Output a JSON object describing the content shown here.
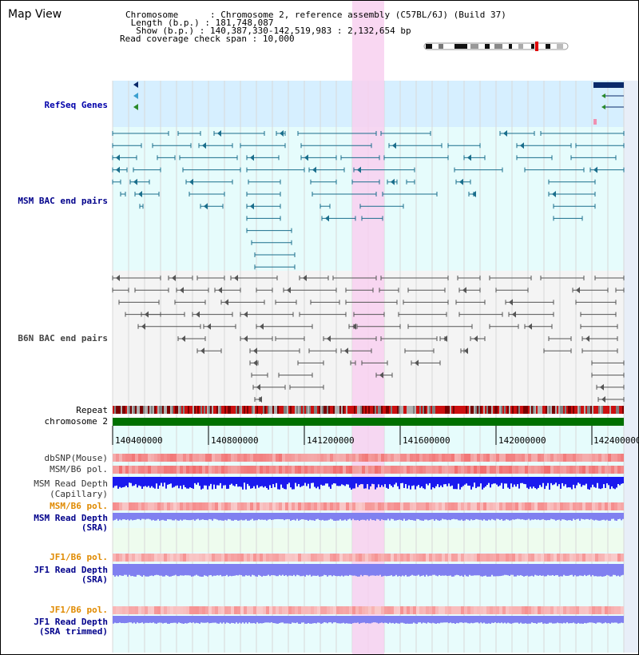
{
  "header": {
    "title": "Map View",
    "chromosome_key": "Chromosome",
    "chromosome_value": "Chromosome 2, reference assembly (C57BL/6J) (Build 37)",
    "length_key": "Length (b.p.)",
    "length_value": "181,748,087",
    "show_key": "Show (b.p.)",
    "show_value": "140,387,330-142,519,983 : 2,132,654 bp",
    "coverage_key": "Read coverage check span",
    "coverage_value": "10,000"
  },
  "tracks": {
    "refseq": "RefSeq Genes",
    "msm_bac": "MSM BAC end pairs",
    "b6n_bac": "B6N BAC end pairs",
    "repeat": "Repeat",
    "chromosome": "chromosome 2",
    "dbsnp": "dbSNP(Mouse)",
    "msm_b6_pol_1": "MSM/B6 pol.",
    "msm_depth_cap_1": "MSM Read Depth",
    "msm_depth_cap_2": "(Capillary)",
    "msm_b6_pol_2": "MSM/B6 pol.",
    "msm_depth_sra_1": "MSM Read Depth",
    "msm_depth_sra_2": "(SRA)",
    "jf1_b6_pol_1": "JF1/B6 pol.",
    "jf1_depth_sra_1": "JF1 Read Depth",
    "jf1_depth_sra_2": "(SRA)",
    "jf1_b6_pol_2": "JF1/B6 pol.",
    "jf1_depth_trim_1": "JF1 Read Depth",
    "jf1_depth_trim_2": "(SRA trimmed)"
  },
  "axis": {
    "ticks": [
      "140400000",
      "140800000",
      "141200000",
      "141600000",
      "142000000",
      "142400000"
    ]
  },
  "colors": {
    "refseq_bg": "#d6efff",
    "msm_bg": "#e6fcfc",
    "pink_highlight": "#f8d0f0",
    "msm_feature": "#1a6e8c",
    "b6n_feature": "#555555",
    "chromosome_bar": "#007000",
    "depth_capillary": "#1a1aee",
    "depth_sra": "#8080f0",
    "pol_red": "#ee3333",
    "snp_red": "#f07070"
  }
}
